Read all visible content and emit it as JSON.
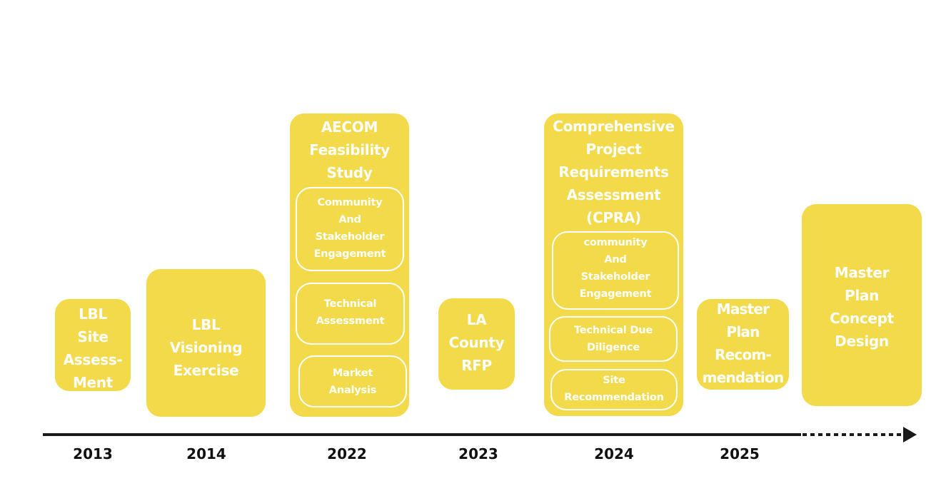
{
  "colors": {
    "box": "#F2DA4B",
    "text": "#FFFFFF",
    "axis": "#1A1A1A"
  },
  "milestones": [
    {
      "year": "2013",
      "title": [
        "LBL",
        "Site",
        "Assess-",
        "Ment"
      ]
    },
    {
      "year": "2014",
      "title": [
        "LBL",
        "Visioning",
        "Exercise"
      ]
    },
    {
      "year": "2022",
      "title": [
        "AECOM",
        "Feasibility",
        "Study"
      ],
      "subitems": [
        [
          "Community",
          "And",
          "Stakeholder",
          "Engagement"
        ],
        [
          "Technical",
          "Assessment"
        ],
        [
          "Market",
          "Analysis"
        ]
      ]
    },
    {
      "year": "2023",
      "title": [
        "LA",
        "County",
        "RFP"
      ]
    },
    {
      "year": "2024",
      "title": [
        "Comprehensive",
        "Project",
        "Requirements",
        "Assessment",
        "(CPRA)"
      ],
      "subitems": [
        [
          "community",
          "And",
          "Stakeholder",
          "Engagement"
        ],
        [
          "Technical Due",
          "Diligence"
        ],
        [
          "Site",
          "Recommendation"
        ]
      ]
    },
    {
      "year": "2025",
      "title": [
        "Master",
        "Plan",
        "Recom-",
        "mendation"
      ]
    },
    {
      "title": [
        "Master",
        "Plan",
        "Concept",
        "Design"
      ]
    }
  ]
}
